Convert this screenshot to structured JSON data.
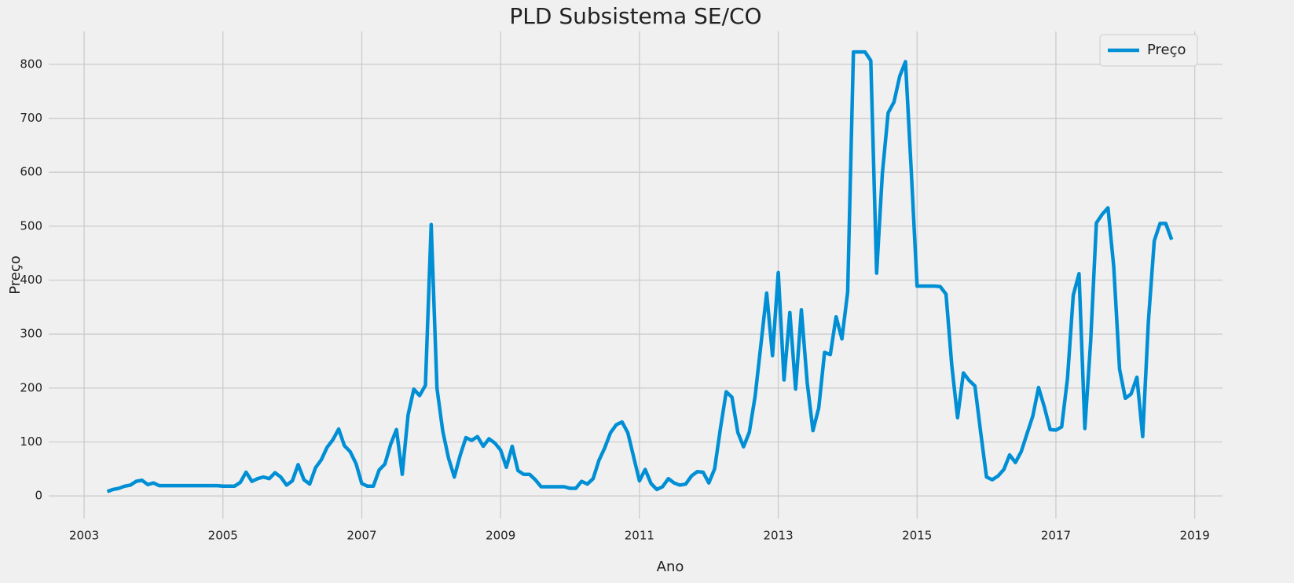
{
  "chart_data": {
    "type": "line",
    "title": "PLD Subsistema SE/CO",
    "x_label": "Ano",
    "y_label": "Preço",
    "xlim": [
      2002.49,
      2019.4
    ],
    "xticks": [
      2003,
      2005,
      2007,
      2009,
      2011,
      2013,
      2015,
      2017,
      2019
    ],
    "ylim": [
      -42,
      861
    ],
    "yticks": [
      0,
      100,
      200,
      300,
      400,
      500,
      600,
      700,
      800
    ],
    "grid": true,
    "legend": "upper right",
    "x": [
      2003.333,
      2003.417,
      2003.5,
      2003.583,
      2003.667,
      2003.75,
      2003.833,
      2003.917,
      2004,
      2004.083,
      2004.167,
      2004.25,
      2004.333,
      2004.417,
      2004.5,
      2004.583,
      2004.667,
      2004.75,
      2004.833,
      2004.917,
      2005,
      2005.083,
      2005.167,
      2005.25,
      2005.333,
      2005.417,
      2005.5,
      2005.583,
      2005.667,
      2005.75,
      2005.833,
      2005.917,
      2006,
      2006.083,
      2006.167,
      2006.25,
      2006.333,
      2006.417,
      2006.5,
      2006.583,
      2006.667,
      2006.75,
      2006.833,
      2006.917,
      2007,
      2007.083,
      2007.167,
      2007.25,
      2007.333,
      2007.417,
      2007.5,
      2007.583,
      2007.667,
      2007.75,
      2007.833,
      2007.917,
      2008,
      2008.083,
      2008.167,
      2008.25,
      2008.333,
      2008.417,
      2008.5,
      2008.583,
      2008.667,
      2008.75,
      2008.833,
      2008.917,
      2009,
      2009.083,
      2009.167,
      2009.25,
      2009.333,
      2009.417,
      2009.5,
      2009.583,
      2009.667,
      2009.75,
      2009.833,
      2009.917,
      2010,
      2010.083,
      2010.167,
      2010.25,
      2010.333,
      2010.417,
      2010.5,
      2010.583,
      2010.667,
      2010.75,
      2010.833,
      2010.917,
      2011,
      2011.083,
      2011.167,
      2011.25,
      2011.333,
      2011.417,
      2011.5,
      2011.583,
      2011.667,
      2011.75,
      2011.833,
      2011.917,
      2012,
      2012.083,
      2012.167,
      2012.25,
      2012.333,
      2012.417,
      2012.5,
      2012.583,
      2012.667,
      2012.75,
      2012.833,
      2012.917,
      2013,
      2013.083,
      2013.167,
      2013.25,
      2013.333,
      2013.417,
      2013.5,
      2013.583,
      2013.667,
      2013.75,
      2013.833,
      2013.917,
      2014,
      2014.083,
      2014.167,
      2014.25,
      2014.333,
      2014.417,
      2014.5,
      2014.583,
      2014.667,
      2014.75,
      2014.833,
      2014.917,
      2015,
      2015.083,
      2015.167,
      2015.25,
      2015.333,
      2015.417,
      2015.5,
      2015.583,
      2015.667,
      2015.75,
      2015.833,
      2015.917,
      2016,
      2016.083,
      2016.167,
      2016.25,
      2016.333,
      2016.417,
      2016.5,
      2016.583,
      2016.667,
      2016.75,
      2016.833,
      2016.917,
      2017,
      2017.083,
      2017.167,
      2017.25,
      2017.333,
      2017.417,
      2017.5,
      2017.583,
      2017.667,
      2017.75,
      2017.833,
      2017.917,
      2018,
      2018.083,
      2018.167,
      2018.25,
      2018.333,
      2018.417,
      2018.5,
      2018.583,
      2018.667
    ],
    "series": [
      {
        "name": "Preço",
        "color": "#008fd5",
        "values": [
          8,
          12,
          14,
          18,
          20,
          27,
          29,
          21,
          24,
          19,
          19,
          19,
          19,
          19,
          19,
          19,
          19,
          19,
          19,
          19,
          18,
          18,
          18,
          25,
          44,
          27,
          32,
          35,
          32,
          43,
          35,
          20,
          28,
          58,
          30,
          22,
          52,
          67,
          90,
          104,
          124,
          93,
          82,
          60,
          23,
          18,
          18,
          48,
          59,
          96,
          123,
          40,
          150,
          198,
          186,
          205,
          503,
          200,
          120,
          70,
          35,
          75,
          108,
          103,
          110,
          92,
          106,
          98,
          85,
          53,
          92,
          47,
          40,
          40,
          30,
          17,
          17,
          17,
          17,
          17,
          14,
          14,
          27,
          22,
          32,
          66,
          89,
          117,
          132,
          137,
          117,
          72,
          28,
          49,
          23,
          12,
          17,
          32,
          24,
          20,
          22,
          37,
          45,
          44,
          24,
          50,
          125,
          193,
          183,
          118,
          91,
          118,
          185,
          280,
          376,
          260,
          414,
          215,
          340,
          198,
          345,
          210,
          121,
          163,
          266,
          262,
          332,
          291,
          378,
          823,
          823,
          823,
          807,
          413,
          598,
          710,
          730,
          778,
          805,
          600,
          389,
          389,
          389,
          389,
          388,
          374,
          242,
          145,
          228,
          214,
          204,
          117,
          35,
          30,
          37,
          49,
          76,
          62,
          82,
          115,
          148,
          201,
          165,
          123,
          122,
          128,
          218,
          372,
          412,
          125,
          285,
          506,
          522,
          534,
          425,
          235,
          181,
          189,
          220,
          110,
          325,
          473,
          505,
          505,
          475
        ]
      }
    ]
  }
}
